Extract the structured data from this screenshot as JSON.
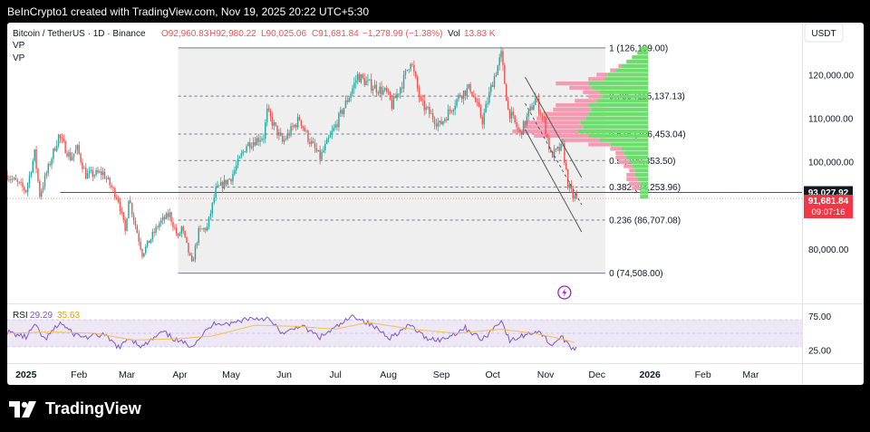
{
  "header": {
    "caption": "BeInCrypto1 created with TradingView.com, Nov 19, 2025 20:22 UTC+5:30"
  },
  "branding": {
    "logo_text": "TradingView"
  },
  "legend": {
    "symbol": "Bitcoin / TetherUS · 1D · Binance",
    "open": "O92,960.83",
    "high": "H92,980.22",
    "low": "L90,025.06",
    "close": "C91,681.84",
    "change": "−1,278.99 (−1.38%)",
    "volume_label": "Vol",
    "volume": "13.83 K",
    "indicator_1": "VP",
    "indicator_2": "VP"
  },
  "currency": "USDT",
  "colors": {
    "bull": "#26a69a",
    "bear": "#ef5350",
    "rsi": "#7e57c2",
    "rsi_ma": "#f7c04a",
    "vp_up": "#6fdc6f",
    "vp_down": "#f29bb2",
    "fib_fill": "#efefef",
    "channel": "#555555"
  },
  "chart_data": {
    "type": "candlestick",
    "price_axis": {
      "range": [
        68000,
        132000
      ],
      "ticks": [
        80000,
        90000,
        100000,
        110000,
        120000
      ],
      "tick_labels": [
        "80,000.00",
        "90,000.00",
        "100,000.00",
        "110,000.00",
        "120,000.00"
      ]
    },
    "time_axis": {
      "start": "2024-12-21",
      "end": "2026-03-31",
      "labels": [
        {
          "label": "2025",
          "date": "2025-01-01",
          "bold": true
        },
        {
          "label": "Feb",
          "date": "2025-02-01"
        },
        {
          "label": "Mar",
          "date": "2025-03-01"
        },
        {
          "label": "Apr",
          "date": "2025-04-01"
        },
        {
          "label": "May",
          "date": "2025-05-01"
        },
        {
          "label": "Jun",
          "date": "2025-06-01"
        },
        {
          "label": "Jul",
          "date": "2025-07-01"
        },
        {
          "label": "Aug",
          "date": "2025-08-01"
        },
        {
          "label": "Sep",
          "date": "2025-09-01"
        },
        {
          "label": "Oct",
          "date": "2025-10-01"
        },
        {
          "label": "Nov",
          "date": "2025-11-01"
        },
        {
          "label": "Dec",
          "date": "2025-12-01"
        },
        {
          "label": "2026",
          "date": "2026-01-01",
          "bold": true
        },
        {
          "label": "Feb",
          "date": "2026-02-01"
        },
        {
          "label": "Mar",
          "date": "2026-03-01"
        }
      ]
    },
    "price_path": [
      [
        "2024-12-21",
        97000
      ],
      [
        "2025-01-01",
        93500
      ],
      [
        "2025-01-06",
        102000
      ],
      [
        "2025-01-09",
        92500
      ],
      [
        "2025-01-20",
        106000
      ],
      [
        "2025-01-27",
        101000
      ],
      [
        "2025-01-31",
        103000
      ],
      [
        "2025-02-05",
        97000
      ],
      [
        "2025-02-15",
        97500
      ],
      [
        "2025-02-24",
        91500
      ],
      [
        "2025-02-28",
        84000
      ],
      [
        "2025-03-02",
        92000
      ],
      [
        "2025-03-10",
        79000
      ],
      [
        "2025-03-20",
        86000
      ],
      [
        "2025-03-26",
        88000
      ],
      [
        "2025-03-31",
        82500
      ],
      [
        "2025-04-02",
        85000
      ],
      [
        "2025-04-08",
        76500
      ],
      [
        "2025-04-12",
        84000
      ],
      [
        "2025-04-17",
        85000
      ],
      [
        "2025-04-22",
        93500
      ],
      [
        "2025-05-01",
        96500
      ],
      [
        "2025-05-10",
        104000
      ],
      [
        "2025-05-20",
        106000
      ],
      [
        "2025-05-22",
        111500
      ],
      [
        "2025-05-31",
        104500
      ],
      [
        "2025-06-10",
        110000
      ],
      [
        "2025-06-15",
        105500
      ],
      [
        "2025-06-22",
        101000
      ],
      [
        "2025-06-30",
        107500
      ],
      [
        "2025-07-10",
        116000
      ],
      [
        "2025-07-14",
        119800
      ],
      [
        "2025-07-20",
        118000
      ],
      [
        "2025-07-31",
        115800
      ],
      [
        "2025-08-03",
        113000
      ],
      [
        "2025-08-10",
        119000
      ],
      [
        "2025-08-14",
        123500
      ],
      [
        "2025-08-20",
        113500
      ],
      [
        "2025-08-31",
        108500
      ],
      [
        "2025-09-01",
        109000
      ],
      [
        "2025-09-12",
        115500
      ],
      [
        "2025-09-18",
        117000
      ],
      [
        "2025-09-25",
        109500
      ],
      [
        "2025-10-01",
        118500
      ],
      [
        "2025-10-06",
        124500
      ],
      [
        "2025-10-10",
        112000
      ],
      [
        "2025-10-17",
        106500
      ],
      [
        "2025-10-26",
        114500
      ],
      [
        "2025-10-31",
        109500
      ],
      [
        "2025-11-04",
        101500
      ],
      [
        "2025-11-11",
        103500
      ],
      [
        "2025-11-14",
        95000
      ],
      [
        "2025-11-17",
        92000
      ],
      [
        "2025-11-19",
        91681.84
      ]
    ],
    "last_candle": {
      "open": 92960.83,
      "high": 92980.22,
      "low": 90025.06,
      "close": 91681.84
    },
    "fibonacci": {
      "start_date": "2025-03-31",
      "end_date": "2025-12-06",
      "levels": [
        {
          "ratio": "1",
          "price": 126199.0,
          "label": "1 (126,199.00)"
        },
        {
          "ratio": "0.786",
          "price": 115137.13,
          "label": "0.786 (115,137.13)"
        },
        {
          "ratio": "0.618",
          "price": 106453.04,
          "label": "0.618 (106,453.04)"
        },
        {
          "ratio": "0.5",
          "price": 100353.5,
          "label": "0.5 (100,353.50)"
        },
        {
          "ratio": "0.382",
          "price": 94253.96,
          "label": "0.382 (94,253.96)"
        },
        {
          "ratio": "0.236",
          "price": 86707.08,
          "label": "0.236 (86,707.08)"
        },
        {
          "ratio": "0",
          "price": 74508.0,
          "label": "0 (74,508.00)"
        }
      ]
    },
    "horizontal_line": {
      "start_date": "2025-01-21",
      "price": 93027.92
    },
    "descending_channel": {
      "upper": [
        [
          "2025-10-20",
          119500
        ],
        [
          "2025-11-22",
          96500
        ]
      ],
      "lower": [
        [
          "2025-10-20",
          107500
        ],
        [
          "2025-11-22",
          84000
        ]
      ],
      "mid": [
        [
          "2025-10-20",
          113500
        ],
        [
          "2025-11-22",
          90250
        ]
      ]
    },
    "volume_profile": {
      "right_edge_date": "2025-12-31",
      "price_range": [
        91500,
        126500
      ],
      "rows": [
        {
          "price": 126000,
          "up": 3,
          "down": 0
        },
        {
          "price": 125000,
          "up": 4,
          "down": 0
        },
        {
          "price": 124000,
          "up": 6,
          "down": 0
        },
        {
          "price": 123000,
          "up": 8,
          "down": 0
        },
        {
          "price": 122000,
          "up": 10,
          "down": 1
        },
        {
          "price": 121000,
          "up": 12,
          "down": 2
        },
        {
          "price": 120000,
          "up": 15,
          "down": 4
        },
        {
          "price": 119000,
          "up": 16,
          "down": 6
        },
        {
          "price": 118000,
          "up": 22,
          "down": 12
        },
        {
          "price": 117000,
          "up": 21,
          "down": 8
        },
        {
          "price": 116000,
          "up": 18,
          "down": 6
        },
        {
          "price": 115000,
          "up": 17,
          "down": 5
        },
        {
          "price": 114000,
          "up": 19,
          "down": 8
        },
        {
          "price": 113000,
          "up": 22,
          "down": 12
        },
        {
          "price": 112000,
          "up": 21,
          "down": 14
        },
        {
          "price": 111000,
          "up": 22,
          "down": 16
        },
        {
          "price": 110000,
          "up": 23,
          "down": 18
        },
        {
          "price": 109000,
          "up": 25,
          "down": 20
        },
        {
          "price": 108000,
          "up": 24,
          "down": 22
        },
        {
          "price": 107000,
          "up": 26,
          "down": 24
        },
        {
          "price": 106000,
          "up": 22,
          "down": 20
        },
        {
          "price": 105000,
          "up": 18,
          "down": 14
        },
        {
          "price": 104000,
          "up": 14,
          "down": 8
        },
        {
          "price": 103000,
          "up": 10,
          "down": 4
        },
        {
          "price": 102000,
          "up": 9,
          "down": 3
        },
        {
          "price": 101000,
          "up": 8,
          "down": 4
        },
        {
          "price": 100000,
          "up": 7,
          "down": 4
        },
        {
          "price": 99000,
          "up": 6,
          "down": 3
        },
        {
          "price": 98000,
          "up": 5,
          "down": 2
        },
        {
          "price": 97000,
          "up": 5,
          "down": 3
        },
        {
          "price": 96000,
          "up": 4,
          "down": 4
        },
        {
          "price": 95000,
          "up": 3,
          "down": 4
        },
        {
          "price": 94000,
          "up": 3,
          "down": 3
        },
        {
          "price": 93000,
          "up": 3,
          "down": 0
        },
        {
          "price": 92000,
          "up": 3,
          "down": 0
        }
      ]
    },
    "price_labels": [
      {
        "price": 93027.92,
        "text": "93,027.92",
        "style": "dark"
      },
      {
        "price": 91681.84,
        "text": "91,681.84",
        "sub": "09:07:16",
        "style": "red"
      }
    ],
    "rsi": {
      "label": "RSI",
      "value": "29.29",
      "ma_value": "35.63",
      "ticks": [
        75,
        25
      ],
      "tick_labels": [
        "75.00",
        "25.00"
      ],
      "band": [
        30,
        70
      ],
      "path": [
        [
          "2024-12-21",
          52
        ],
        [
          "2025-01-01",
          44
        ],
        [
          "2025-01-06",
          62
        ],
        [
          "2025-01-12",
          40
        ],
        [
          "2025-01-21",
          66
        ],
        [
          "2025-01-28",
          50
        ],
        [
          "2025-02-05",
          44
        ],
        [
          "2025-02-15",
          48
        ],
        [
          "2025-02-25",
          28
        ],
        [
          "2025-03-02",
          44
        ],
        [
          "2025-03-10",
          30
        ],
        [
          "2025-03-22",
          52
        ],
        [
          "2025-03-31",
          38
        ],
        [
          "2025-04-08",
          32
        ],
        [
          "2025-04-15",
          50
        ],
        [
          "2025-04-22",
          66
        ],
        [
          "2025-05-01",
          64
        ],
        [
          "2025-05-10",
          72
        ],
        [
          "2025-05-22",
          72
        ],
        [
          "2025-06-01",
          48
        ],
        [
          "2025-06-10",
          62
        ],
        [
          "2025-06-22",
          44
        ],
        [
          "2025-07-01",
          58
        ],
        [
          "2025-07-12",
          76
        ],
        [
          "2025-07-22",
          62
        ],
        [
          "2025-08-02",
          44
        ],
        [
          "2025-08-14",
          62
        ],
        [
          "2025-08-22",
          44
        ],
        [
          "2025-09-01",
          40
        ],
        [
          "2025-09-15",
          58
        ],
        [
          "2025-09-25",
          40
        ],
        [
          "2025-10-06",
          70
        ],
        [
          "2025-10-11",
          38
        ],
        [
          "2025-10-20",
          48
        ],
        [
          "2025-10-28",
          54
        ],
        [
          "2025-11-04",
          33
        ],
        [
          "2025-11-11",
          45
        ],
        [
          "2025-11-15",
          28
        ],
        [
          "2025-11-19",
          29.29
        ]
      ],
      "ma_path": [
        [
          "2024-12-21",
          50
        ],
        [
          "2025-01-15",
          52
        ],
        [
          "2025-02-10",
          50
        ],
        [
          "2025-03-05",
          40
        ],
        [
          "2025-03-31",
          42
        ],
        [
          "2025-04-20",
          46
        ],
        [
          "2025-05-15",
          62
        ],
        [
          "2025-06-10",
          60
        ],
        [
          "2025-07-01",
          56
        ],
        [
          "2025-07-20",
          66
        ],
        [
          "2025-08-15",
          56
        ],
        [
          "2025-09-10",
          50
        ],
        [
          "2025-10-06",
          56
        ],
        [
          "2025-10-25",
          50
        ],
        [
          "2025-11-10",
          42
        ],
        [
          "2025-11-19",
          35.63
        ]
      ]
    }
  }
}
